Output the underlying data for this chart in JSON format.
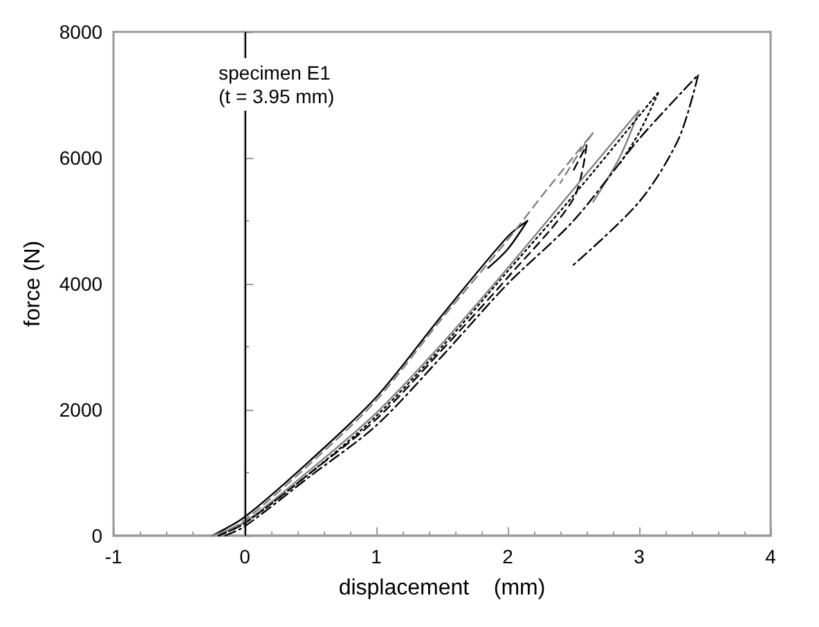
{
  "chart_data": {
    "type": "line",
    "xlabel": "displacement    (mm)",
    "ylabel": "force (N)",
    "xlim": [
      -1,
      4
    ],
    "xticks": [
      -1,
      0,
      1,
      2,
      3,
      4
    ],
    "ylim": [
      0,
      8000
    ],
    "yticks": [
      0,
      2000,
      4000,
      6000,
      8000
    ],
    "grid": false,
    "marker": "none",
    "annotations": [
      "specimen E1",
      "(t = 3.95 mm)"
    ],
    "ref_lines": [
      {
        "axis": "x",
        "value": 0,
        "color": "#000000"
      }
    ],
    "series": [
      {
        "color": "#000000",
        "line_style": "solid",
        "x": [
          -0.25,
          0,
          0.5,
          1,
          1.5,
          2,
          2.15,
          2,
          1.85
        ],
        "values": [
          0,
          300,
          1200,
          2200,
          3500,
          4750,
          5000,
          4550,
          4250
        ]
      },
      {
        "color": "#808080",
        "line_style": "dashed",
        "x": [
          -0.2,
          0,
          0.5,
          1,
          1.5,
          2,
          2.3,
          2.65,
          2.55,
          2.4
        ],
        "values": [
          0,
          250,
          1150,
          2150,
          3450,
          4700,
          5500,
          6400,
          6100,
          5600
        ]
      },
      {
        "color": "#000000",
        "line_style": "dashed",
        "x": [
          -0.2,
          0,
          0.5,
          1,
          1.5,
          2,
          2.5,
          2.6,
          2.5
        ],
        "values": [
          0,
          200,
          1000,
          1850,
          2950,
          4100,
          5350,
          6200,
          5800
        ]
      },
      {
        "color": "#808080",
        "line_style": "solid",
        "x": [
          -0.25,
          0,
          0.5,
          1,
          1.5,
          2,
          2.5,
          3,
          2.85,
          2.65
        ],
        "values": [
          0,
          220,
          1050,
          1950,
          3050,
          4250,
          5500,
          6750,
          6000,
          5300
        ]
      },
      {
        "color": "#000000",
        "line_style": "dotted",
        "x": [
          -0.2,
          0,
          0.5,
          1,
          1.5,
          2,
          2.5,
          3.15,
          3,
          2.85
        ],
        "values": [
          0,
          200,
          1000,
          1900,
          3000,
          4200,
          5400,
          7050,
          6400,
          5900
        ]
      },
      {
        "color": "#000000",
        "line_style": "dashdot",
        "x": [
          -0.15,
          0,
          0.5,
          1,
          1.5,
          2,
          2.5,
          3,
          3.45,
          3.3,
          3,
          2.5
        ],
        "values": [
          0,
          150,
          950,
          1750,
          2850,
          4000,
          5000,
          6300,
          7320,
          6300,
          5300,
          4300
        ]
      }
    ]
  }
}
